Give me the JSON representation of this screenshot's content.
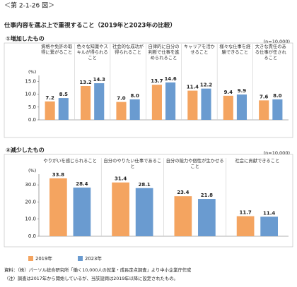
{
  "header": {
    "figure_no": "＜第 2-1-26 図＞",
    "title": "仕事内容を選ぶ上で重視すること（2019年と2023年の比較）"
  },
  "chart_data": [
    {
      "type": "bar",
      "subtitle": "①増加したもの",
      "note": "(n=10,000)",
      "y_unit": "(%)",
      "categories": [
        "資格や免許の取得に繋がること",
        "色々な知識やスキルが得られること",
        "社会的な成功が得られること",
        "自律的に自分の判断で仕事を進められること",
        "キャリアを活かせること",
        "様々な仕事を経験できること",
        "大きな責任のある仕事が任されること"
      ],
      "series": [
        {
          "name": "2019年",
          "color": "#f4a460",
          "values": [
            7.2,
            13.2,
            7.0,
            13.7,
            11.4,
            9.4,
            7.6
          ],
          "value_labels": [
            "7.2",
            "13.2",
            "7.0",
            "13.7",
            "11.4",
            "9.4",
            "7.6"
          ]
        },
        {
          "name": "2023年",
          "color": "#6a9bd0",
          "values": [
            8.5,
            14.3,
            8.0,
            14.6,
            12.2,
            9.9,
            8.0
          ],
          "value_labels": [
            "8.5",
            "14.3",
            "8.0",
            "14.6",
            "12.2",
            "9.9",
            "8.0"
          ]
        }
      ],
      "ylim": [
        0,
        16.5
      ],
      "yticks": [
        {
          "value": 0,
          "label": "0.0"
        },
        {
          "value": 5,
          "label": "5.0"
        },
        {
          "value": 10,
          "label": "10.0"
        },
        {
          "value": 15,
          "label": "15.0"
        }
      ]
    },
    {
      "type": "bar",
      "subtitle": "②減少したもの",
      "note": "(n=10,000)",
      "y_unit": "(%)",
      "categories": [
        "やりがいを感じられること",
        "自分のやりたい仕事であること",
        "自分の能力や個性が生かせること",
        "社会に貢献できること"
      ],
      "series": [
        {
          "color": "#f4a460",
          "values": [
            33.8,
            31.4,
            23.4,
            11.7
          ],
          "value_labels": [
            "33.8",
            "31.4",
            "23.4",
            "11.7"
          ]
        },
        {
          "color": "#6a9bd0",
          "values": [
            28.4,
            28.1,
            21.8,
            11.4
          ],
          "value_labels": [
            "28.4",
            "28.1",
            "21.8",
            "11.4"
          ]
        }
      ],
      "ylim": [
        0,
        35
      ],
      "yticks": [
        {
          "value": 0,
          "label": "0.0"
        },
        {
          "value": 10,
          "label": "10.0"
        },
        {
          "value": 20,
          "label": "20.0"
        },
        {
          "value": 30,
          "label": "30.0"
        }
      ]
    }
  ],
  "footer": {
    "source": "資料：（株）パーソル総合研究所「働く10,000人の就業・成長定点調査」より中小企業庁作成",
    "note": "（注）調査は2017年から開始しているが、当該設問は2019年以降に設定されたもの。"
  }
}
